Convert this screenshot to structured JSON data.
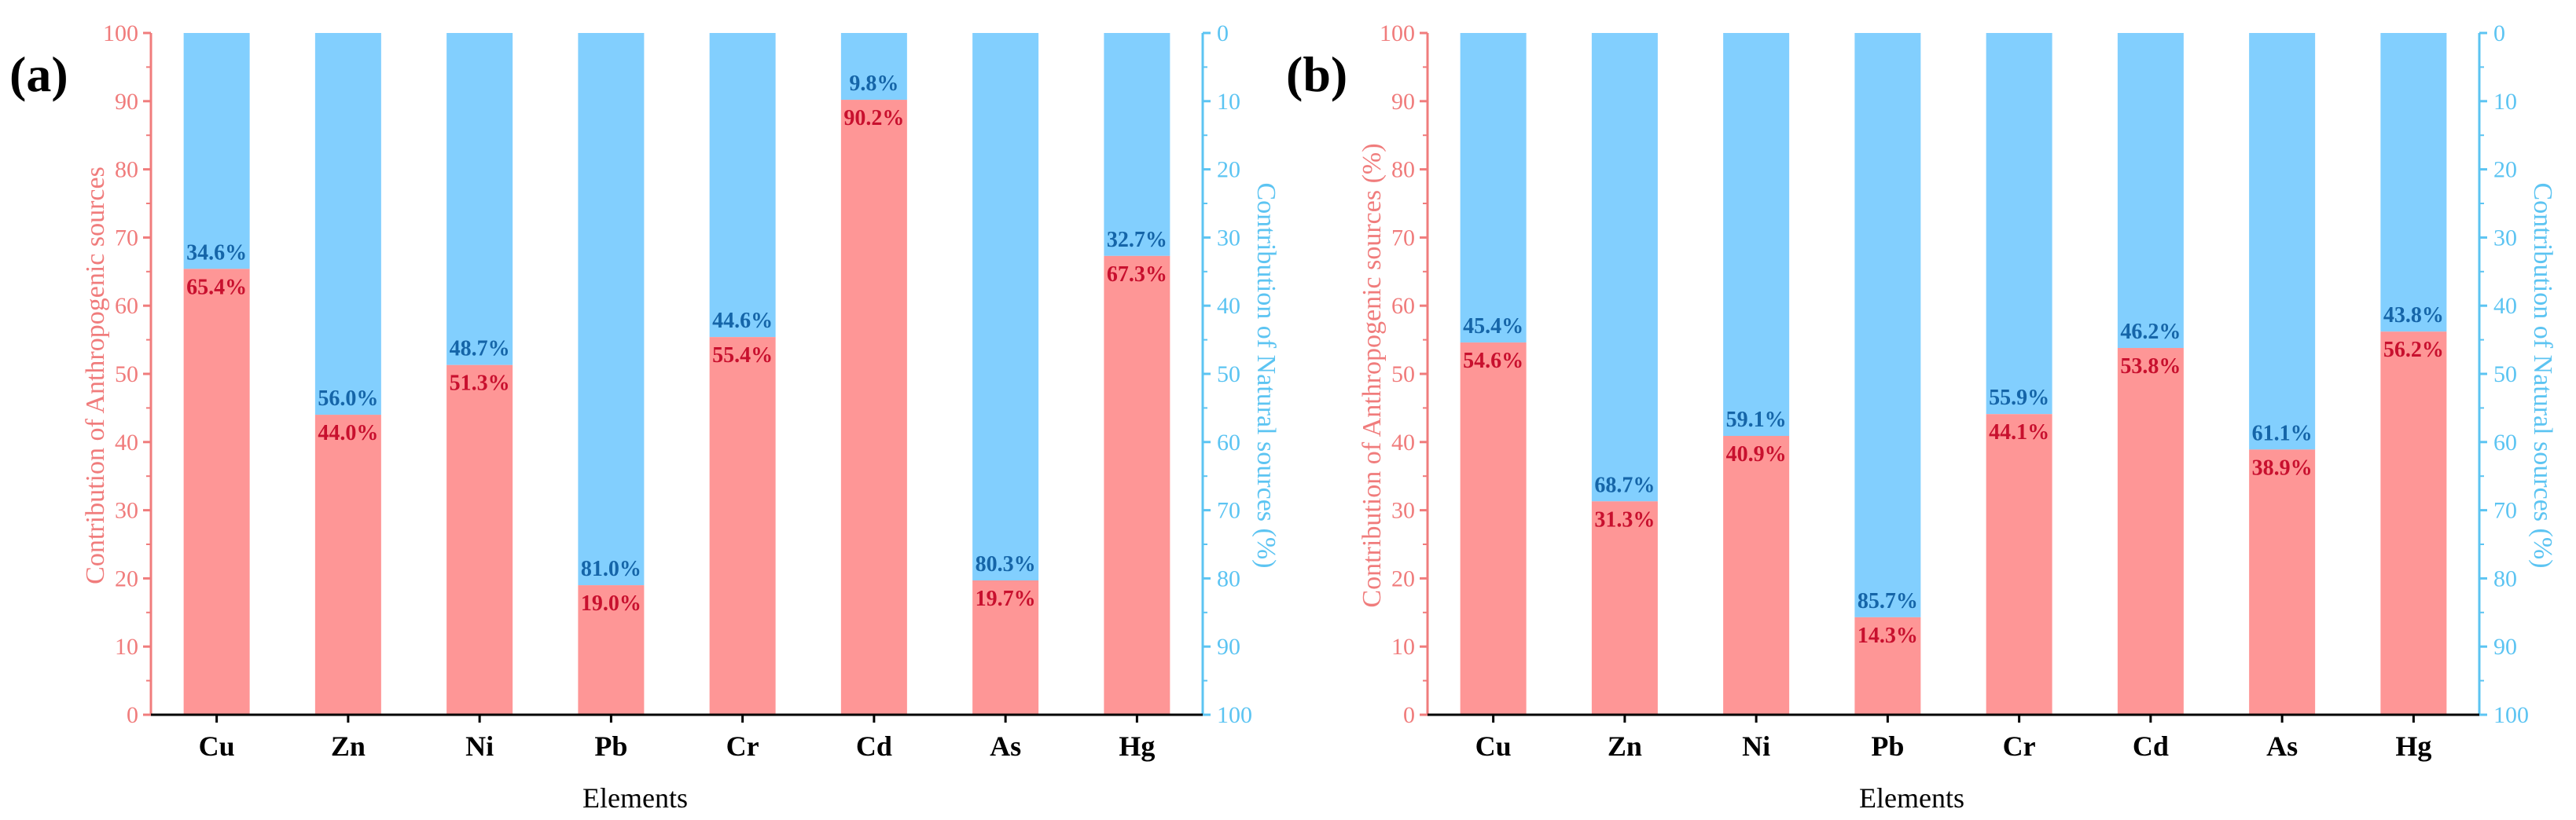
{
  "colors": {
    "anthropogenic": "#fe9696",
    "natural": "#82cffe",
    "anthro_label": "#c8102e",
    "natural_label": "#1565a8",
    "left_axis": "#f07c7c",
    "right_axis": "#5cc4f2"
  },
  "chart_data": [
    {
      "panel": "(a)",
      "type": "bar",
      "stacked": true,
      "categories": [
        "Cu",
        "Zn",
        "Ni",
        "Pb",
        "Cr",
        "Cd",
        "As",
        "Hg"
      ],
      "series": [
        {
          "name": "Anthropogenic sources",
          "values": [
            65.4,
            44.0,
            51.3,
            19.0,
            55.4,
            90.2,
            19.7,
            67.3
          ],
          "labels": [
            "65.4%",
            "44.0%",
            "51.3%",
            "19.0%",
            "55.4%",
            "90.2%",
            "19.7%",
            "67.3%"
          ]
        },
        {
          "name": "Natural sources",
          "values": [
            34.6,
            56.0,
            48.7,
            81.0,
            44.6,
            9.8,
            80.3,
            32.7
          ],
          "labels": [
            "34.6%",
            "56.0%",
            "48.7%",
            "81.0%",
            "44.6%",
            "9.8%",
            "80.3%",
            "32.7%"
          ]
        }
      ],
      "xlabel": "Elements",
      "ylabel_left": "Contribution of Anthropogenic sources",
      "ylabel_right": "Contribution of Natural sources (%)",
      "ylim_left": [
        0,
        100
      ],
      "ylim_right": [
        100,
        0
      ],
      "left_ticks": [
        "0",
        "10",
        "20",
        "30",
        "40",
        "50",
        "60",
        "70",
        "80",
        "90",
        "100"
      ],
      "right_ticks": [
        "0",
        "10",
        "20",
        "30",
        "40",
        "50",
        "60",
        "70",
        "80",
        "90",
        "100"
      ]
    },
    {
      "panel": "(b)",
      "type": "bar",
      "stacked": true,
      "categories": [
        "Cu",
        "Zn",
        "Ni",
        "Pb",
        "Cr",
        "Cd",
        "As",
        "Hg"
      ],
      "series": [
        {
          "name": "Anthropogenic sources",
          "values": [
            54.6,
            31.3,
            40.9,
            14.3,
            44.1,
            53.8,
            38.9,
            56.2
          ],
          "labels": [
            "54.6%",
            "31.3%",
            "40.9%",
            "14.3%",
            "44.1%",
            "53.8%",
            "38.9%",
            "56.2%"
          ]
        },
        {
          "name": "Natural sources",
          "values": [
            45.4,
            68.7,
            59.1,
            85.7,
            55.9,
            46.2,
            61.1,
            43.8
          ],
          "labels": [
            "45.4%",
            "68.7%",
            "59.1%",
            "85.7%",
            "55.9%",
            "46.2%",
            "61.1%",
            "43.8%"
          ]
        }
      ],
      "xlabel": "Elements",
      "ylabel_left": "Contribution of Anthropogenic sources (%)",
      "ylabel_right": "Contribution of Natural sources (%)",
      "ylim_left": [
        0,
        100
      ],
      "ylim_right": [
        100,
        0
      ],
      "left_ticks": [
        "0",
        "10",
        "20",
        "30",
        "40",
        "50",
        "60",
        "70",
        "80",
        "90",
        "100"
      ],
      "right_ticks": [
        "0",
        "10",
        "20",
        "30",
        "40",
        "50",
        "60",
        "70",
        "80",
        "90",
        "100"
      ]
    }
  ]
}
